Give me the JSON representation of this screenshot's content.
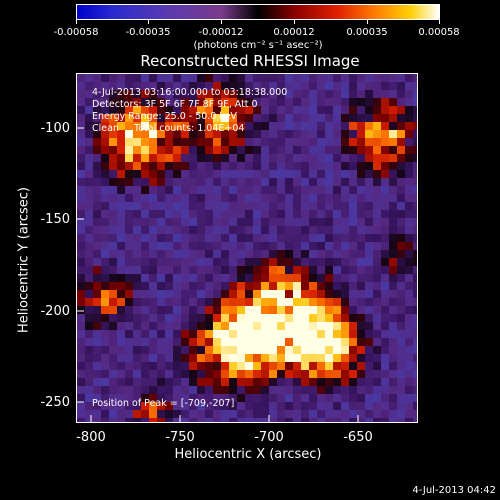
{
  "colorbar": {
    "tick_labels": [
      "-0.00058",
      "-0.00035",
      "-0.00012",
      "0.00012",
      "0.00035",
      "0.00058"
    ],
    "units": "(photons cm⁻² s⁻¹ asec⁻²)"
  },
  "title": "Reconstructed RHESSI Image",
  "info": {
    "time": "4-Jul-2013 03:16:00.000 to 03:18:38.000",
    "detectors": "Detectors: 3F 5F 6F 7F 8F 9F, Att 0",
    "energy": "Energy Range: 25.0 - 50.0 keV",
    "clean": "Clean     Total counts: 1.04E+04",
    "peak": "Position of Peak = [-709,-207]"
  },
  "axes": {
    "xlabel": "Heliocentric X (arcsec)",
    "ylabel": "Heliocentric Y (arcsec)",
    "xticks": [
      "-800",
      "-750",
      "-700",
      "-650"
    ],
    "yticks": [
      "-100",
      "-150",
      "-200",
      "-250"
    ]
  },
  "footer_date": "4-Jul-2013 04:42"
}
